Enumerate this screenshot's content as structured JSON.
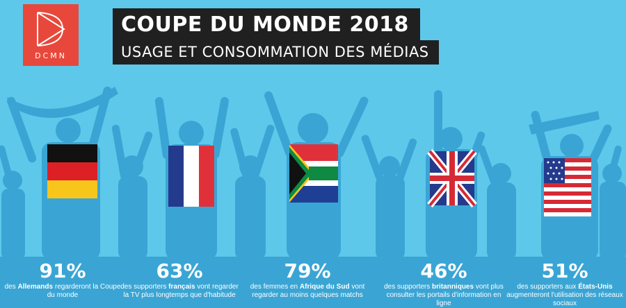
{
  "logo": {
    "text": "DCMN"
  },
  "header": {
    "title": "COUPE DU MONDE 2018",
    "subtitle": "USAGE ET CONSOMMATION DES MÉDIAS"
  },
  "colors": {
    "background": "#5ec8ea",
    "silhouette": "#3aa5d4",
    "logo_bg": "#e8483b",
    "title_bg": "#202020"
  },
  "stats": [
    {
      "pct": "91%",
      "pre": "des ",
      "bold": "Allemands",
      "post": " regarderont la Coupe du monde"
    },
    {
      "pct": "63%",
      "pre": "des supporters ",
      "bold": "français",
      "post": " vont regarder la TV plus longtemps que d'habitude"
    },
    {
      "pct": "79%",
      "pre": "des femmes en ",
      "bold": "Afrique du Sud",
      "post": " vont regarder au moins quelques matchs"
    },
    {
      "pct": "46%",
      "pre": "des supporters ",
      "bold": "britanniques",
      "post": " vont plus consulter les portails d'information en ligne"
    },
    {
      "pct": "51%",
      "pre": "des supporters aux ",
      "bold": "États-Unis",
      "post": " augmenteront l'utilisation des réseaux sociaux"
    }
  ]
}
